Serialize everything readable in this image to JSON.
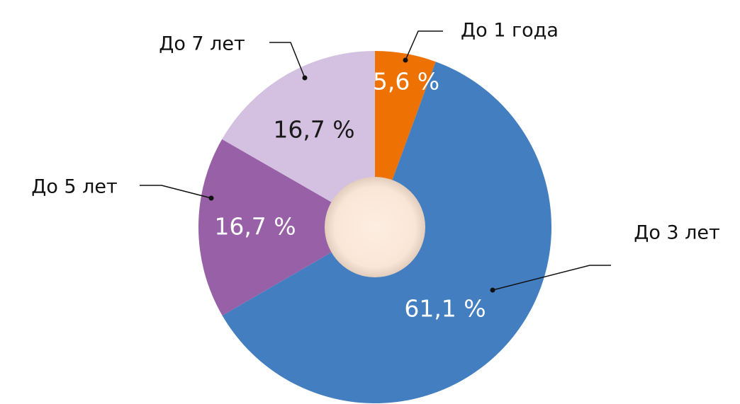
{
  "chart_data": {
    "type": "donut",
    "categories": [
      "До 1 года",
      "До 3 лет",
      "До 5 лет",
      "До 7 лет"
    ],
    "values": [
      5.6,
      61.1,
      16.7,
      16.7
    ],
    "value_labels": [
      "5,6 %",
      "61,1 %",
      "16,7 %",
      "16,7 %"
    ],
    "colors": [
      "#ee7203",
      "#427ec0",
      "#9760a7",
      "#d4c0e0"
    ],
    "value_label_colors": [
      "#ffffff",
      "#ffffff",
      "#ffffff",
      "#1a1a1a"
    ]
  }
}
